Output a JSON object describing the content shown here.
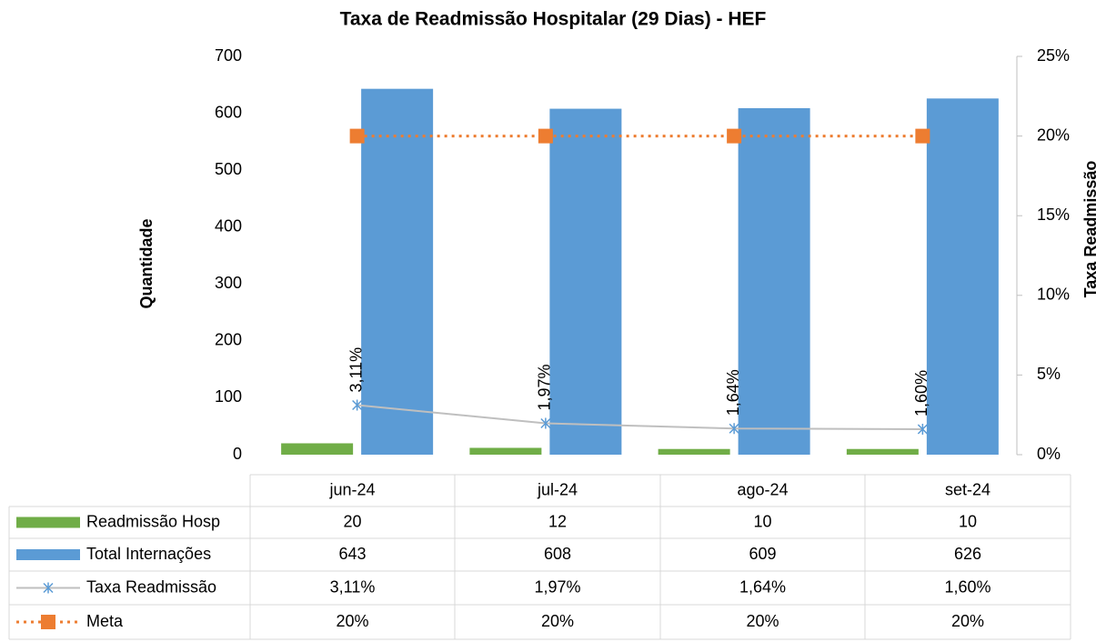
{
  "chart_data": {
    "type": "bar",
    "title": "Taxa de Readmissão Hospitalar (29 Dias) - HEF",
    "y_label": "Quantidade",
    "y2_label": "Taxa Readmissão",
    "categories": [
      "jun-24",
      "jul-24",
      "ago-24",
      "set-24"
    ],
    "series": [
      {
        "name": "Readmissão Hosp",
        "type": "bar",
        "color": "#70ad47",
        "values": [
          20,
          12,
          10,
          10
        ]
      },
      {
        "name": "Total Internações",
        "type": "bar",
        "color": "#5b9bd5",
        "values": [
          643,
          608,
          609,
          626
        ]
      },
      {
        "name": "Taxa Readmissão",
        "type": "line",
        "axis": "y2",
        "color": "#bfbfbf",
        "marker_color": "#5b9bd5",
        "marker": "star",
        "line_style": "solid",
        "data_labels": true,
        "values": [
          3.11,
          1.97,
          1.64,
          1.6
        ],
        "value_labels": [
          "3,11%",
          "1,97%",
          "1,64%",
          "1,60%"
        ]
      },
      {
        "name": "Meta",
        "type": "line",
        "axis": "y2",
        "color": "#ed7d31",
        "marker_color": "#ed7d31",
        "marker": "square",
        "line_style": "dotted",
        "data_labels": false,
        "values": [
          20,
          20,
          20,
          20
        ],
        "value_labels": [
          "20%",
          "20%",
          "20%",
          "20%"
        ]
      }
    ],
    "ylim": [
      0,
      700
    ],
    "yticks": [
      0,
      100,
      200,
      300,
      400,
      500,
      600,
      700
    ],
    "y2lim": [
      0,
      25
    ],
    "y2ticks": [
      {
        "value": 0,
        "label": "0%"
      },
      {
        "value": 5,
        "label": "5%"
      },
      {
        "value": 10,
        "label": "10%"
      },
      {
        "value": 15,
        "label": "15%"
      },
      {
        "value": 20,
        "label": "20%"
      },
      {
        "value": 25,
        "label": "25%"
      }
    ],
    "data_table": true
  }
}
